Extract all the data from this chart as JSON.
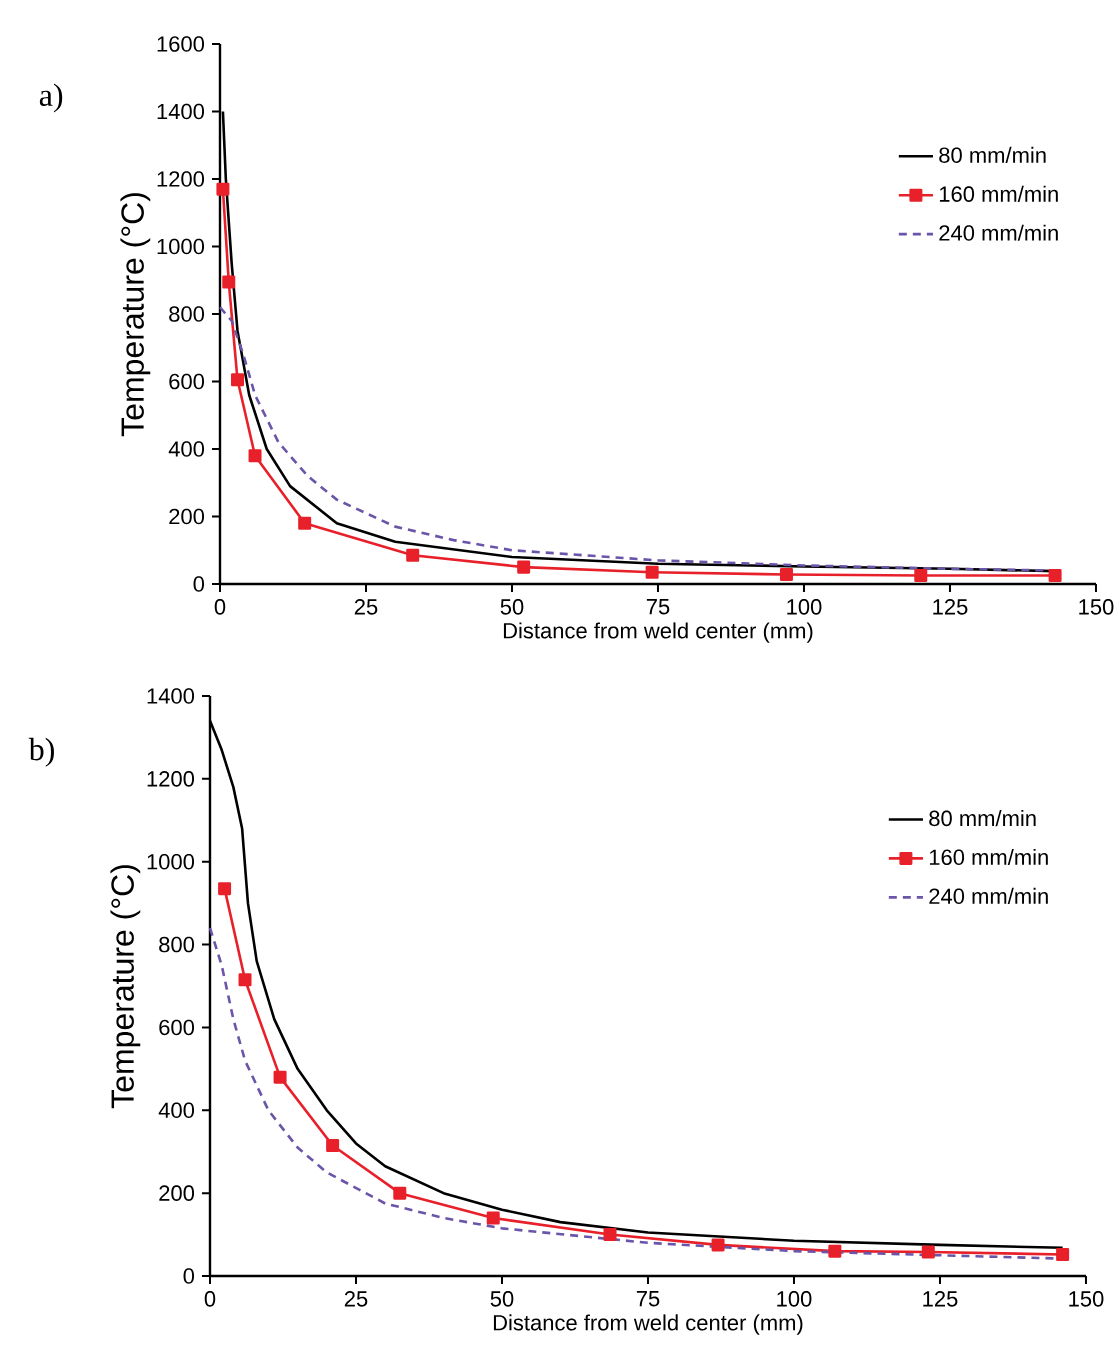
{
  "chart_data": [
    {
      "type": "line",
      "annotations": [
        "a)"
      ],
      "xlabel": "Distance from weld center (mm)",
      "ylabel": "Temperature (°C)",
      "xlim": [
        0,
        150
      ],
      "ylim": [
        0,
        1600
      ],
      "xticks": [
        0,
        25,
        50,
        75,
        100,
        125,
        150
      ],
      "yticks": [
        0,
        200,
        400,
        600,
        800,
        1000,
        1200,
        1400,
        1600
      ],
      "legend": "right",
      "grid": false,
      "series": [
        {
          "name": "80 mm/min",
          "color": "#000000",
          "line_style": "solid",
          "marker": "none",
          "x": [
            0.5,
            1,
            2,
            3,
            5,
            8,
            12,
            20,
            30,
            50,
            75,
            100,
            125,
            143
          ],
          "values": [
            1400,
            1200,
            950,
            750,
            560,
            400,
            290,
            180,
            125,
            80,
            60,
            52,
            45,
            38
          ]
        },
        {
          "name": "160 mm/min",
          "color": "#e8202a",
          "line_style": "solid",
          "marker": "square",
          "x": [
            0.5,
            1.5,
            3,
            6,
            14.5,
            33,
            52,
            74,
            97,
            120,
            143
          ],
          "values": [
            1170,
            895,
            605,
            380,
            180,
            85,
            50,
            35,
            28,
            25,
            25
          ]
        },
        {
          "name": "240 mm/min",
          "color": "#6a55a8",
          "line_style": "dashed",
          "marker": "none",
          "x": [
            0,
            2,
            4,
            6,
            10,
            15,
            20,
            30,
            40,
            50,
            75,
            100,
            125,
            143
          ],
          "values": [
            820,
            780,
            680,
            560,
            420,
            320,
            250,
            170,
            130,
            100,
            70,
            55,
            45,
            40
          ]
        }
      ]
    },
    {
      "type": "line",
      "annotations": [
        "b)"
      ],
      "xlabel": "Distance from weld center (mm)",
      "ylabel": "Temperature (°C)",
      "xlim": [
        0,
        150
      ],
      "ylim": [
        0,
        1400
      ],
      "xticks": [
        0,
        25,
        50,
        75,
        100,
        125,
        150
      ],
      "yticks": [
        0,
        200,
        400,
        600,
        800,
        1000,
        1200,
        1400
      ],
      "legend": "right",
      "grid": false,
      "series": [
        {
          "name": "80 mm/min",
          "color": "#000000",
          "line_style": "solid",
          "marker": "none",
          "x": [
            0,
            2,
            4,
            5.5,
            6.5,
            8,
            11,
            15,
            20,
            25,
            30,
            40,
            50,
            60,
            75,
            100,
            125,
            146
          ],
          "values": [
            1340,
            1270,
            1180,
            1080,
            900,
            760,
            620,
            500,
            400,
            320,
            265,
            200,
            160,
            130,
            105,
            85,
            75,
            68
          ]
        },
        {
          "name": "160 mm/min",
          "color": "#e8202a",
          "line_style": "solid",
          "marker": "square",
          "x": [
            2.5,
            6,
            12,
            21,
            32.5,
            48.5,
            68.5,
            87,
            107,
            123,
            146
          ],
          "values": [
            935,
            715,
            480,
            315,
            200,
            140,
            100,
            75,
            60,
            58,
            52
          ]
        },
        {
          "name": "240 mm/min",
          "color": "#6a55a8",
          "line_style": "dashed",
          "marker": "none",
          "x": [
            0,
            2,
            4,
            6,
            10,
            15,
            20,
            30,
            40,
            50,
            75,
            100,
            125,
            146
          ],
          "values": [
            840,
            750,
            620,
            520,
            400,
            310,
            250,
            175,
            140,
            115,
            80,
            60,
            50,
            42
          ]
        }
      ]
    }
  ]
}
